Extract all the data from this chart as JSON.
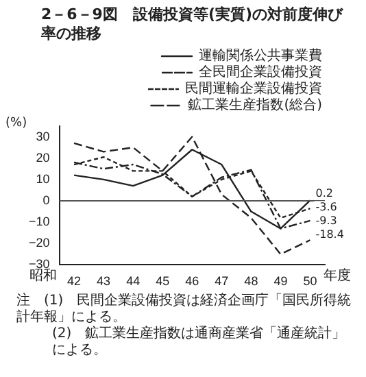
{
  "chart_data": {
    "type": "line",
    "title": "2－6－9図　設備投資等(実質)の対前度伸び率の推移",
    "ylabel": "(%)",
    "xlabel": "年度",
    "categories": [
      "42",
      "43",
      "44",
      "45",
      "46",
      "47",
      "48",
      "49",
      "50"
    ],
    "series": [
      {
        "name": "運輸関係公共事業費",
        "color": "#222222",
        "line_style": "solid",
        "values": [
          12,
          10,
          7,
          12,
          24,
          17,
          -5,
          -13,
          0.2
        ],
        "value_labels": [
          null,
          null,
          null,
          null,
          null,
          null,
          null,
          null,
          "0.2"
        ]
      },
      {
        "name": "全民間企業設備投資",
        "color": "#222222",
        "line_style": "dashed",
        "values": [
          27,
          23,
          25,
          14,
          30,
          3,
          -8,
          -25,
          -18.4
        ],
        "value_labels": [
          null,
          null,
          null,
          null,
          null,
          null,
          null,
          null,
          "-18.4"
        ]
      },
      {
        "name": "民間運輸企業設備投資",
        "color": "#222222",
        "line_style": "dotted",
        "values": [
          17,
          20.5,
          14,
          14,
          2,
          10,
          14,
          -8,
          -3.6
        ],
        "value_labels": [
          null,
          null,
          null,
          null,
          null,
          null,
          null,
          null,
          "-3.6"
        ]
      },
      {
        "name": "鉱工業生産指数(総合)",
        "color": "#222222",
        "line_style": "dashdot",
        "values": [
          18,
          15,
          17,
          12.5,
          2,
          11,
          14.5,
          -13,
          -9.3
        ],
        "value_labels": [
          null,
          null,
          null,
          null,
          null,
          null,
          null,
          null,
          "-9.3"
        ]
      }
    ],
    "ylim": [
      -30,
      35
    ],
    "yticks": [
      -30,
      -20,
      -10,
      0,
      10,
      20,
      30
    ],
    "grid": false,
    "legend": "top right",
    "marker": "none",
    "ref_lines": [
      {
        "axis": "y",
        "value": 0,
        "color": "#555555"
      }
    ],
    "annotations": [
      "昭和",
      "注　(1)　民間企業設備投資は経済企画庁「国民所得統計年報」による。",
      "(2)　鉱工業生産指数は通商産業省「通産統計」による。"
    ]
  }
}
